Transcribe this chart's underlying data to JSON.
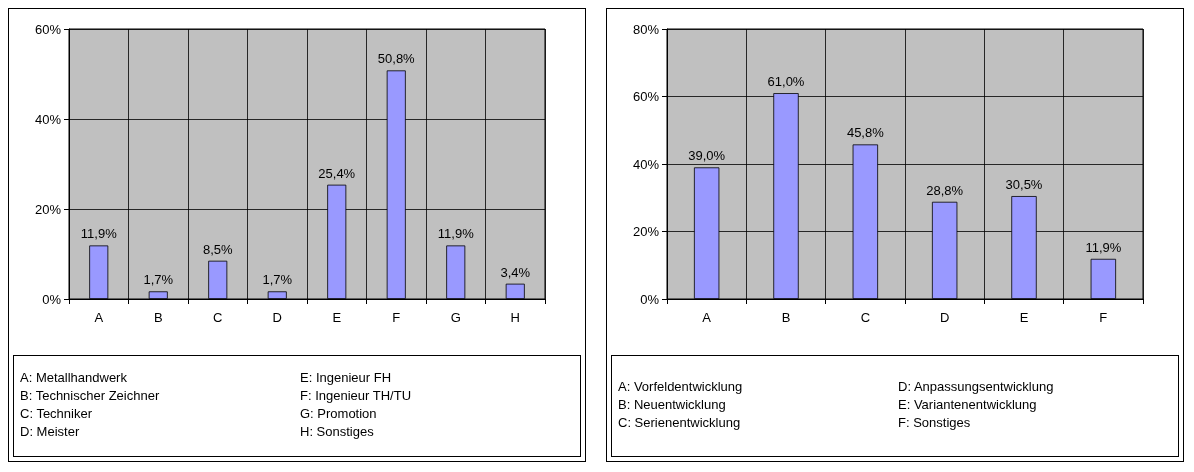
{
  "chart_data": [
    {
      "type": "bar",
      "categories": [
        "A",
        "B",
        "C",
        "D",
        "E",
        "F",
        "G",
        "H"
      ],
      "series": [
        {
          "color": "#9999ff",
          "values": [
            11.9,
            1.7,
            8.5,
            1.7,
            25.4,
            50.8,
            11.9,
            3.4
          ],
          "value_labels": [
            "11,9%",
            "1,7%",
            "8,5%",
            "1,7%",
            "25,4%",
            "50,8%",
            "11,9%",
            "3,4%"
          ]
        }
      ],
      "ylim": [
        0,
        60
      ],
      "yticks": [
        {
          "value": 0,
          "label": "0%"
        },
        {
          "value": 20,
          "label": "20%"
        },
        {
          "value": 40,
          "label": "40%"
        },
        {
          "value": 60,
          "label": "60%"
        }
      ],
      "grid": true,
      "annotations": [
        "A: Metallhandwerk",
        "B: Technischer Zeichner",
        "C: Techniker",
        "D: Meister",
        "E: Ingenieur FH",
        "F: Ingenieur TH/TU",
        "G: Promotion",
        "H: Sonstiges"
      ]
    },
    {
      "type": "bar",
      "categories": [
        "A",
        "B",
        "C",
        "D",
        "E",
        "F"
      ],
      "series": [
        {
          "color": "#9999ff",
          "values": [
            39.0,
            61.0,
            45.8,
            28.8,
            30.5,
            11.9
          ],
          "value_labels": [
            "39,0%",
            "61,0%",
            "45,8%",
            "28,8%",
            "30,5%",
            "11,9%"
          ]
        }
      ],
      "ylim": [
        0,
        80
      ],
      "yticks": [
        {
          "value": 0,
          "label": "0%"
        },
        {
          "value": 20,
          "label": "20%"
        },
        {
          "value": 40,
          "label": "40%"
        },
        {
          "value": 60,
          "label": "60%"
        },
        {
          "value": 80,
          "label": "80%"
        }
      ],
      "grid": true,
      "annotations": [
        "A: Vorfeldentwicklung",
        "B: Neuentwicklung",
        "C: Serienentwicklung",
        "D: Anpassungsentwicklung",
        "E: Variantenentwicklung",
        "F: Sonstiges"
      ]
    }
  ]
}
